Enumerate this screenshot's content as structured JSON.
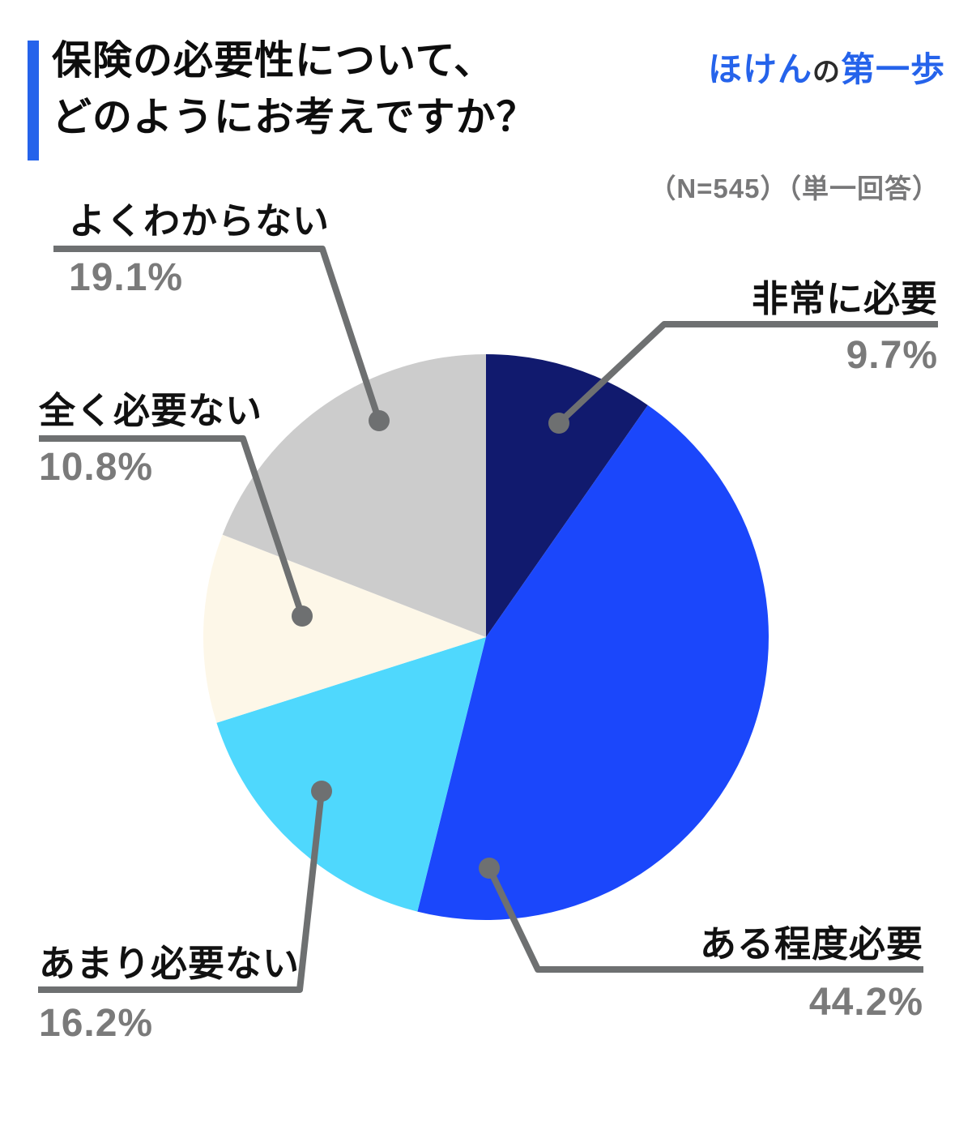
{
  "header": {
    "title_line1": "保険の必要性について、",
    "title_line2": "どのようにお考えですか？",
    "accent_color": "#2563eb"
  },
  "logo": {
    "part1": "ほけん",
    "part2": "の",
    "part3": "第一歩",
    "brand_color": "#2563eb"
  },
  "survey_note": "（N=545）（単一回答）",
  "chart_data": {
    "type": "pie",
    "title": "保険の必要性について、どのようにお考えですか？",
    "sample_note": "（N=545）（単一回答）",
    "start_angle_deg": 0,
    "direction": "clockwise",
    "categories": [
      "非常に必要",
      "ある程度必要",
      "あまり必要ない",
      "全く必要ない",
      "よくわからない"
    ],
    "values": [
      9.7,
      44.2,
      16.2,
      10.8,
      19.1
    ],
    "unit": "%",
    "colors": [
      "#111a6e",
      "#1b47fb",
      "#4fd8fd",
      "#fdf7e8",
      "#cccccc"
    ],
    "leader_color": "#6e7071",
    "legend_position": "outside-callouts",
    "grid": false
  },
  "labels": [
    {
      "name": "非常に必要",
      "pct": "9.7%"
    },
    {
      "name": "ある程度必要",
      "pct": "44.2%"
    },
    {
      "name": "あまり必要ない",
      "pct": "16.2%"
    },
    {
      "name": "全く必要ない",
      "pct": "10.8%"
    },
    {
      "name": "よくわからない",
      "pct": "19.1%"
    }
  ]
}
